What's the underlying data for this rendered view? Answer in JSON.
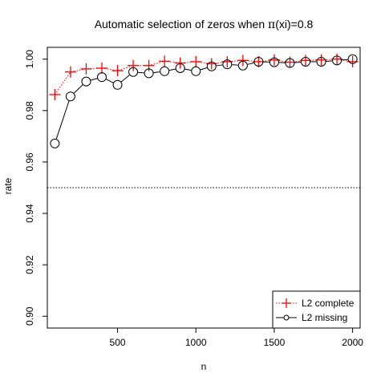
{
  "chart_data": {
    "type": "line",
    "title_prefix": "Automatic selection of zeros when ",
    "title_symbol": "π",
    "title_suffix": "(xi)=0.8",
    "xlabel": "n",
    "ylabel": "rate",
    "xlim": [
      52,
      2048
    ],
    "ylim": [
      0.8954,
      1.0046
    ],
    "x_ticks": [
      500,
      1000,
      1500,
      2000
    ],
    "x_tick_labels": [
      "500",
      "1000",
      "1500",
      "2000"
    ],
    "y_ticks": [
      0.9,
      0.92,
      0.94,
      0.96,
      0.98,
      1.0
    ],
    "y_tick_labels": [
      "0.90",
      "0.92",
      "0.94",
      "0.96",
      "0.98",
      "1.00"
    ],
    "reference_line": {
      "y": 0.95,
      "style": "dotted"
    },
    "legend_position": "bottom-right",
    "x": [
      100,
      200,
      300,
      400,
      500,
      600,
      700,
      800,
      900,
      1000,
      1100,
      1200,
      1300,
      1400,
      1500,
      1600,
      1700,
      1800,
      1900,
      2000
    ],
    "series": [
      {
        "name": "L2 complete",
        "values": [
          0.9862,
          0.995,
          0.9962,
          0.9965,
          0.9955,
          0.9975,
          0.9975,
          0.9992,
          0.9985,
          0.999,
          0.9982,
          0.999,
          0.9995,
          0.999,
          0.9997,
          0.9988,
          0.9995,
          0.9997,
          1.0,
          0.999
        ],
        "color": "#ff0000",
        "marker": "plus",
        "line_style": "dotted"
      },
      {
        "name": "L2 missing",
        "values": [
          0.9672,
          0.9855,
          0.9913,
          0.993,
          0.99,
          0.995,
          0.9945,
          0.9953,
          0.9965,
          0.9953,
          0.9972,
          0.998,
          0.9975,
          0.999,
          0.9988,
          0.9985,
          0.999,
          0.999,
          0.9995,
          1.0
        ],
        "color": "#000000",
        "marker": "circle",
        "line_style": "solid"
      }
    ]
  }
}
